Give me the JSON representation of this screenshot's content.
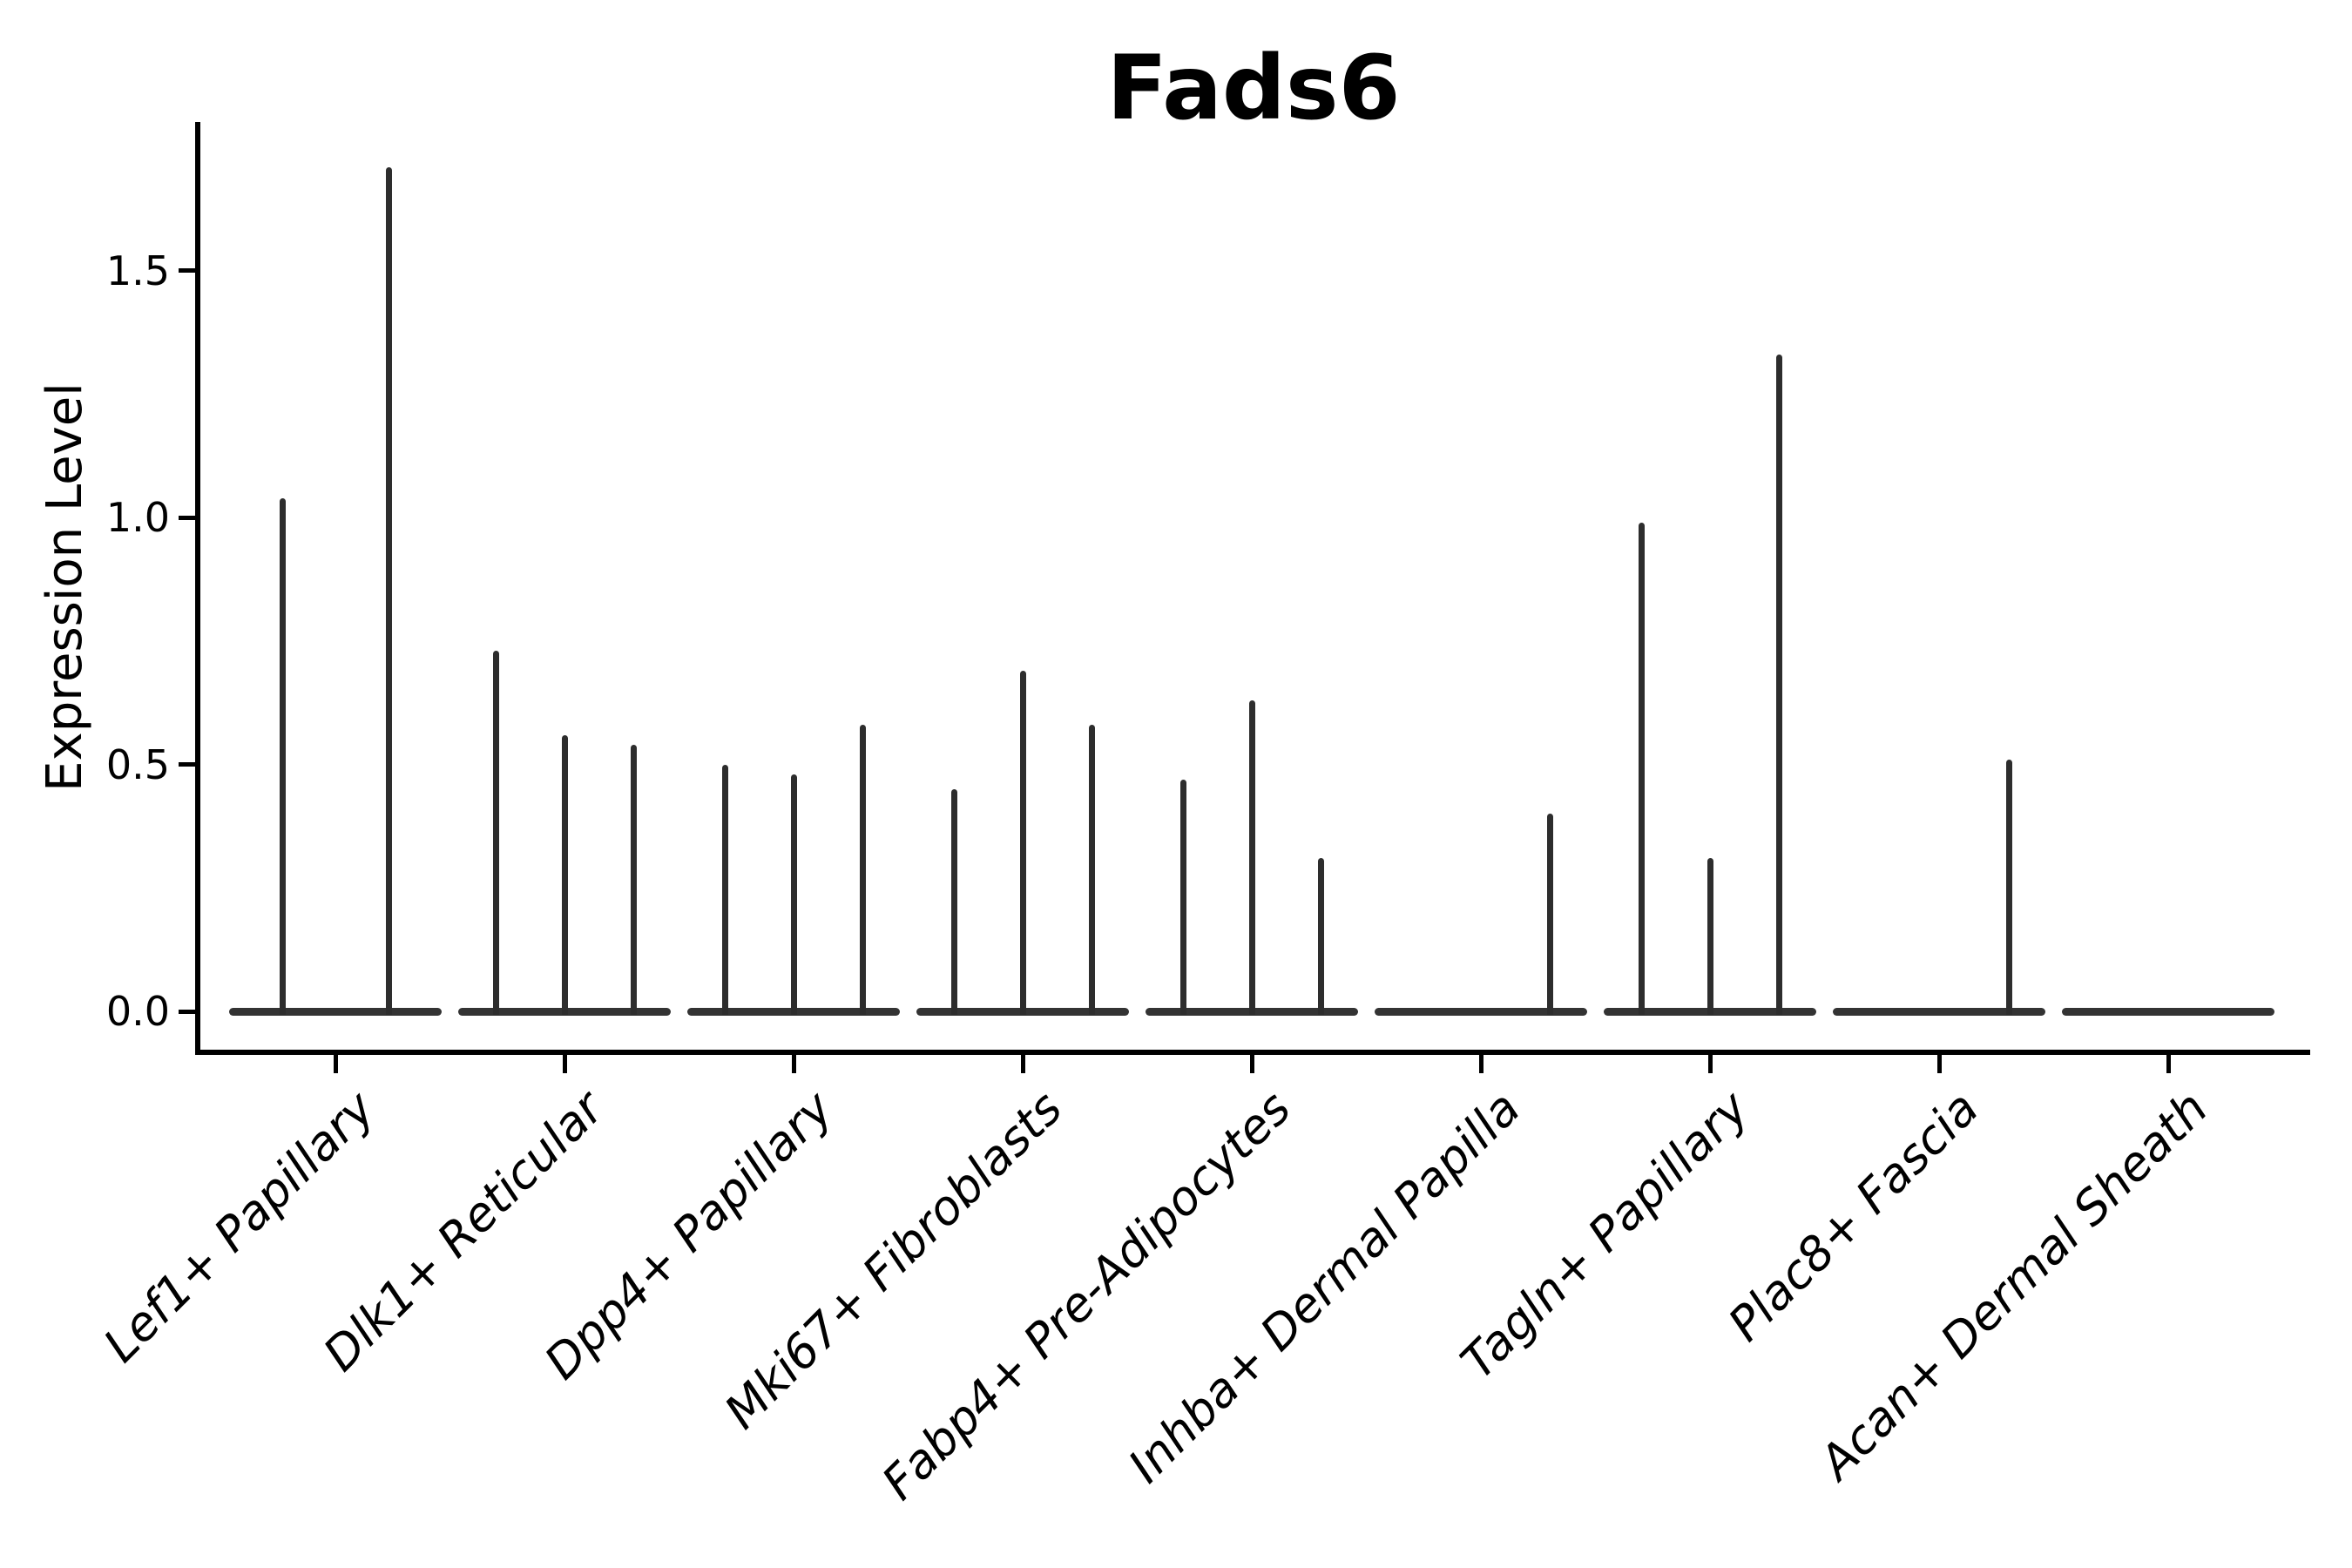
{
  "chart_data": {
    "type": "violin",
    "title": "Fads6",
    "xlabel": "",
    "ylabel": "Expression Level",
    "ylim": [
      -0.08,
      1.8
    ],
    "yticks": [
      0.0,
      0.5,
      1.0,
      1.5
    ],
    "grid": false,
    "legend": false,
    "description": "Collapsed violins (most values at 0) shown as flat baselines with thin spikes up to each violin's maximum expression value",
    "categories": [
      "Lef1+ Papillary",
      "Dlk1+ Reticular",
      "Dpp4+ Papillary",
      "Mki67+ Fibroblasts",
      "Fabp4+ Pre-Adipocytes",
      "Inhba+ Dermal Papilla",
      "Tagln+ Papillary",
      "Plac8+ Fascia",
      "Acan+ Dermal Sheath"
    ],
    "violins": [
      {
        "category": "Lef1+ Papillary",
        "offsets": [
          -61,
          61
        ],
        "maxima": [
          1.04,
          1.71
        ]
      },
      {
        "category": "Dlk1+ Reticular",
        "offsets": [
          -79,
          0,
          79
        ],
        "maxima": [
          0.73,
          0.56,
          0.54
        ]
      },
      {
        "category": "Dpp4+ Papillary",
        "offsets": [
          -79,
          0,
          79
        ],
        "maxima": [
          0.5,
          0.48,
          0.58
        ]
      },
      {
        "category": "Mki67+ Fibroblasts",
        "offsets": [
          -79,
          0,
          79
        ],
        "maxima": [
          0.45,
          0.69,
          0.58
        ]
      },
      {
        "category": "Fabp4+ Pre-Adipocytes",
        "offsets": [
          -79,
          0,
          79
        ],
        "maxima": [
          0.47,
          0.63,
          0.31
        ]
      },
      {
        "category": "Inhba+ Dermal Papilla",
        "offsets": [
          -79,
          0,
          79
        ],
        "maxima": [
          0.0,
          0.0,
          0.4
        ]
      },
      {
        "category": "Tagln+ Papillary",
        "offsets": [
          -79,
          0,
          79
        ],
        "maxima": [
          0.99,
          0.31,
          1.33
        ]
      },
      {
        "category": "Plac8+ Fascia",
        "offsets": [
          -80,
          0,
          80
        ],
        "maxima": [
          0.0,
          0.0,
          0.51
        ]
      },
      {
        "category": "Acan+ Dermal Sheath",
        "offsets": [
          -79,
          0,
          79
        ],
        "maxima": [
          0.0,
          0.0,
          0.0
        ]
      }
    ],
    "colors": {
      "spike": "#2d2d2d",
      "baseline": "#333333",
      "spine": "#000000",
      "text": "#000000",
      "background": "#ffffff"
    }
  }
}
